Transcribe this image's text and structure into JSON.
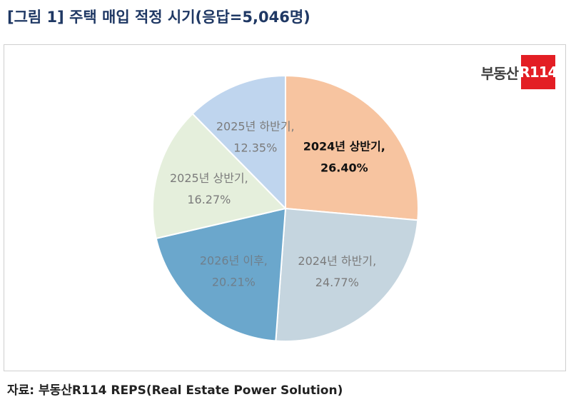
{
  "title": "[그림 1] 주택 매입 적정 시기(응답=5,046명)",
  "logo": {
    "text": "부동산",
    "box_text": "R114"
  },
  "source": "자료: 부동산R114 REPS(Real Estate Power Solution)",
  "chart_data": {
    "type": "pie",
    "title": "",
    "unit": "%",
    "start_angle_deg": 0,
    "direction": "clockwise",
    "slices": [
      {
        "label": "2024년 상반기,",
        "value": 26.4,
        "value_text": "26.40%",
        "color": "#f7c4a0",
        "text_color": "#111111",
        "bold": true
      },
      {
        "label": "2024년 하반기,",
        "value": 24.77,
        "value_text": "24.77%",
        "color": "#c5d5df",
        "text_color": "#7b7b7b",
        "bold": false
      },
      {
        "label": "2026년 이후,",
        "value": 20.21,
        "value_text": "20.21%",
        "color": "#6ba7cc",
        "text_color": "#6f7f8c",
        "bold": false
      },
      {
        "label": "2025년 상반기,",
        "value": 16.27,
        "value_text": "16.27%",
        "color": "#e5efdc",
        "text_color": "#7b7b7b",
        "bold": false
      },
      {
        "label": "2025년 하반기,",
        "value": 12.35,
        "value_text": "12.35%",
        "color": "#bfd5ee",
        "text_color": "#7b7b7b",
        "bold": false
      }
    ],
    "slice_border_color": "#ffffff"
  }
}
